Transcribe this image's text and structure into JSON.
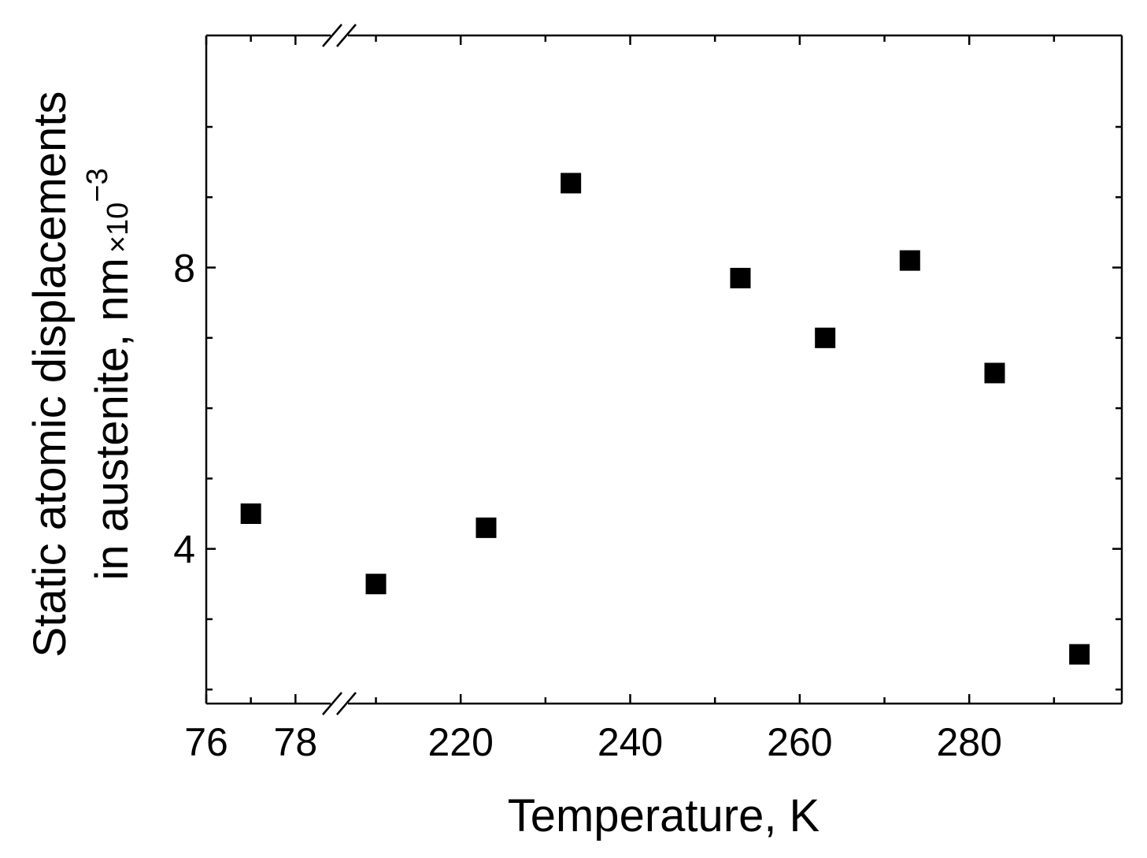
{
  "chart_data": {
    "type": "scatter",
    "xlabel": "Temperature, K",
    "ylabel_line1": "Static atomic displacements",
    "ylabel_line2": "in austenite,  nm",
    "ylabel_unit_multiplier": "×10",
    "ylabel_unit_exponent": "−3",
    "ylim": [
      1.8,
      11.3
    ],
    "y_tick_labels": [
      {
        "value": 4,
        "label": "4"
      },
      {
        "value": 8,
        "label": "8"
      }
    ],
    "y_minor_ticks": [
      2,
      3,
      5,
      6,
      7,
      9,
      10
    ],
    "x_axis_broken": true,
    "x_segments": [
      {
        "range": [
          76,
          78.4
        ],
        "ticks": [
          {
            "value": 76,
            "label": "76"
          },
          {
            "value": 78,
            "label": "78"
          }
        ],
        "minor_ticks": [
          77
        ]
      },
      {
        "range": [
          208,
          298
        ],
        "ticks": [
          {
            "value": 220,
            "label": "220"
          },
          {
            "value": 240,
            "label": "240"
          },
          {
            "value": 260,
            "label": "260"
          },
          {
            "value": 280,
            "label": "280"
          }
        ],
        "minor_ticks": [
          210,
          230,
          250,
          270,
          290
        ]
      }
    ],
    "series": [
      {
        "marker": "square",
        "color": "#000000",
        "points": [
          {
            "x": 77,
            "y": 4.5
          },
          {
            "x": 210,
            "y": 3.5
          },
          {
            "x": 223,
            "y": 4.3
          },
          {
            "x": 233,
            "y": 9.2
          },
          {
            "x": 253,
            "y": 7.85
          },
          {
            "x": 263,
            "y": 7.0
          },
          {
            "x": 273,
            "y": 8.1
          },
          {
            "x": 283,
            "y": 6.5
          },
          {
            "x": 293,
            "y": 2.5
          }
        ]
      }
    ]
  }
}
